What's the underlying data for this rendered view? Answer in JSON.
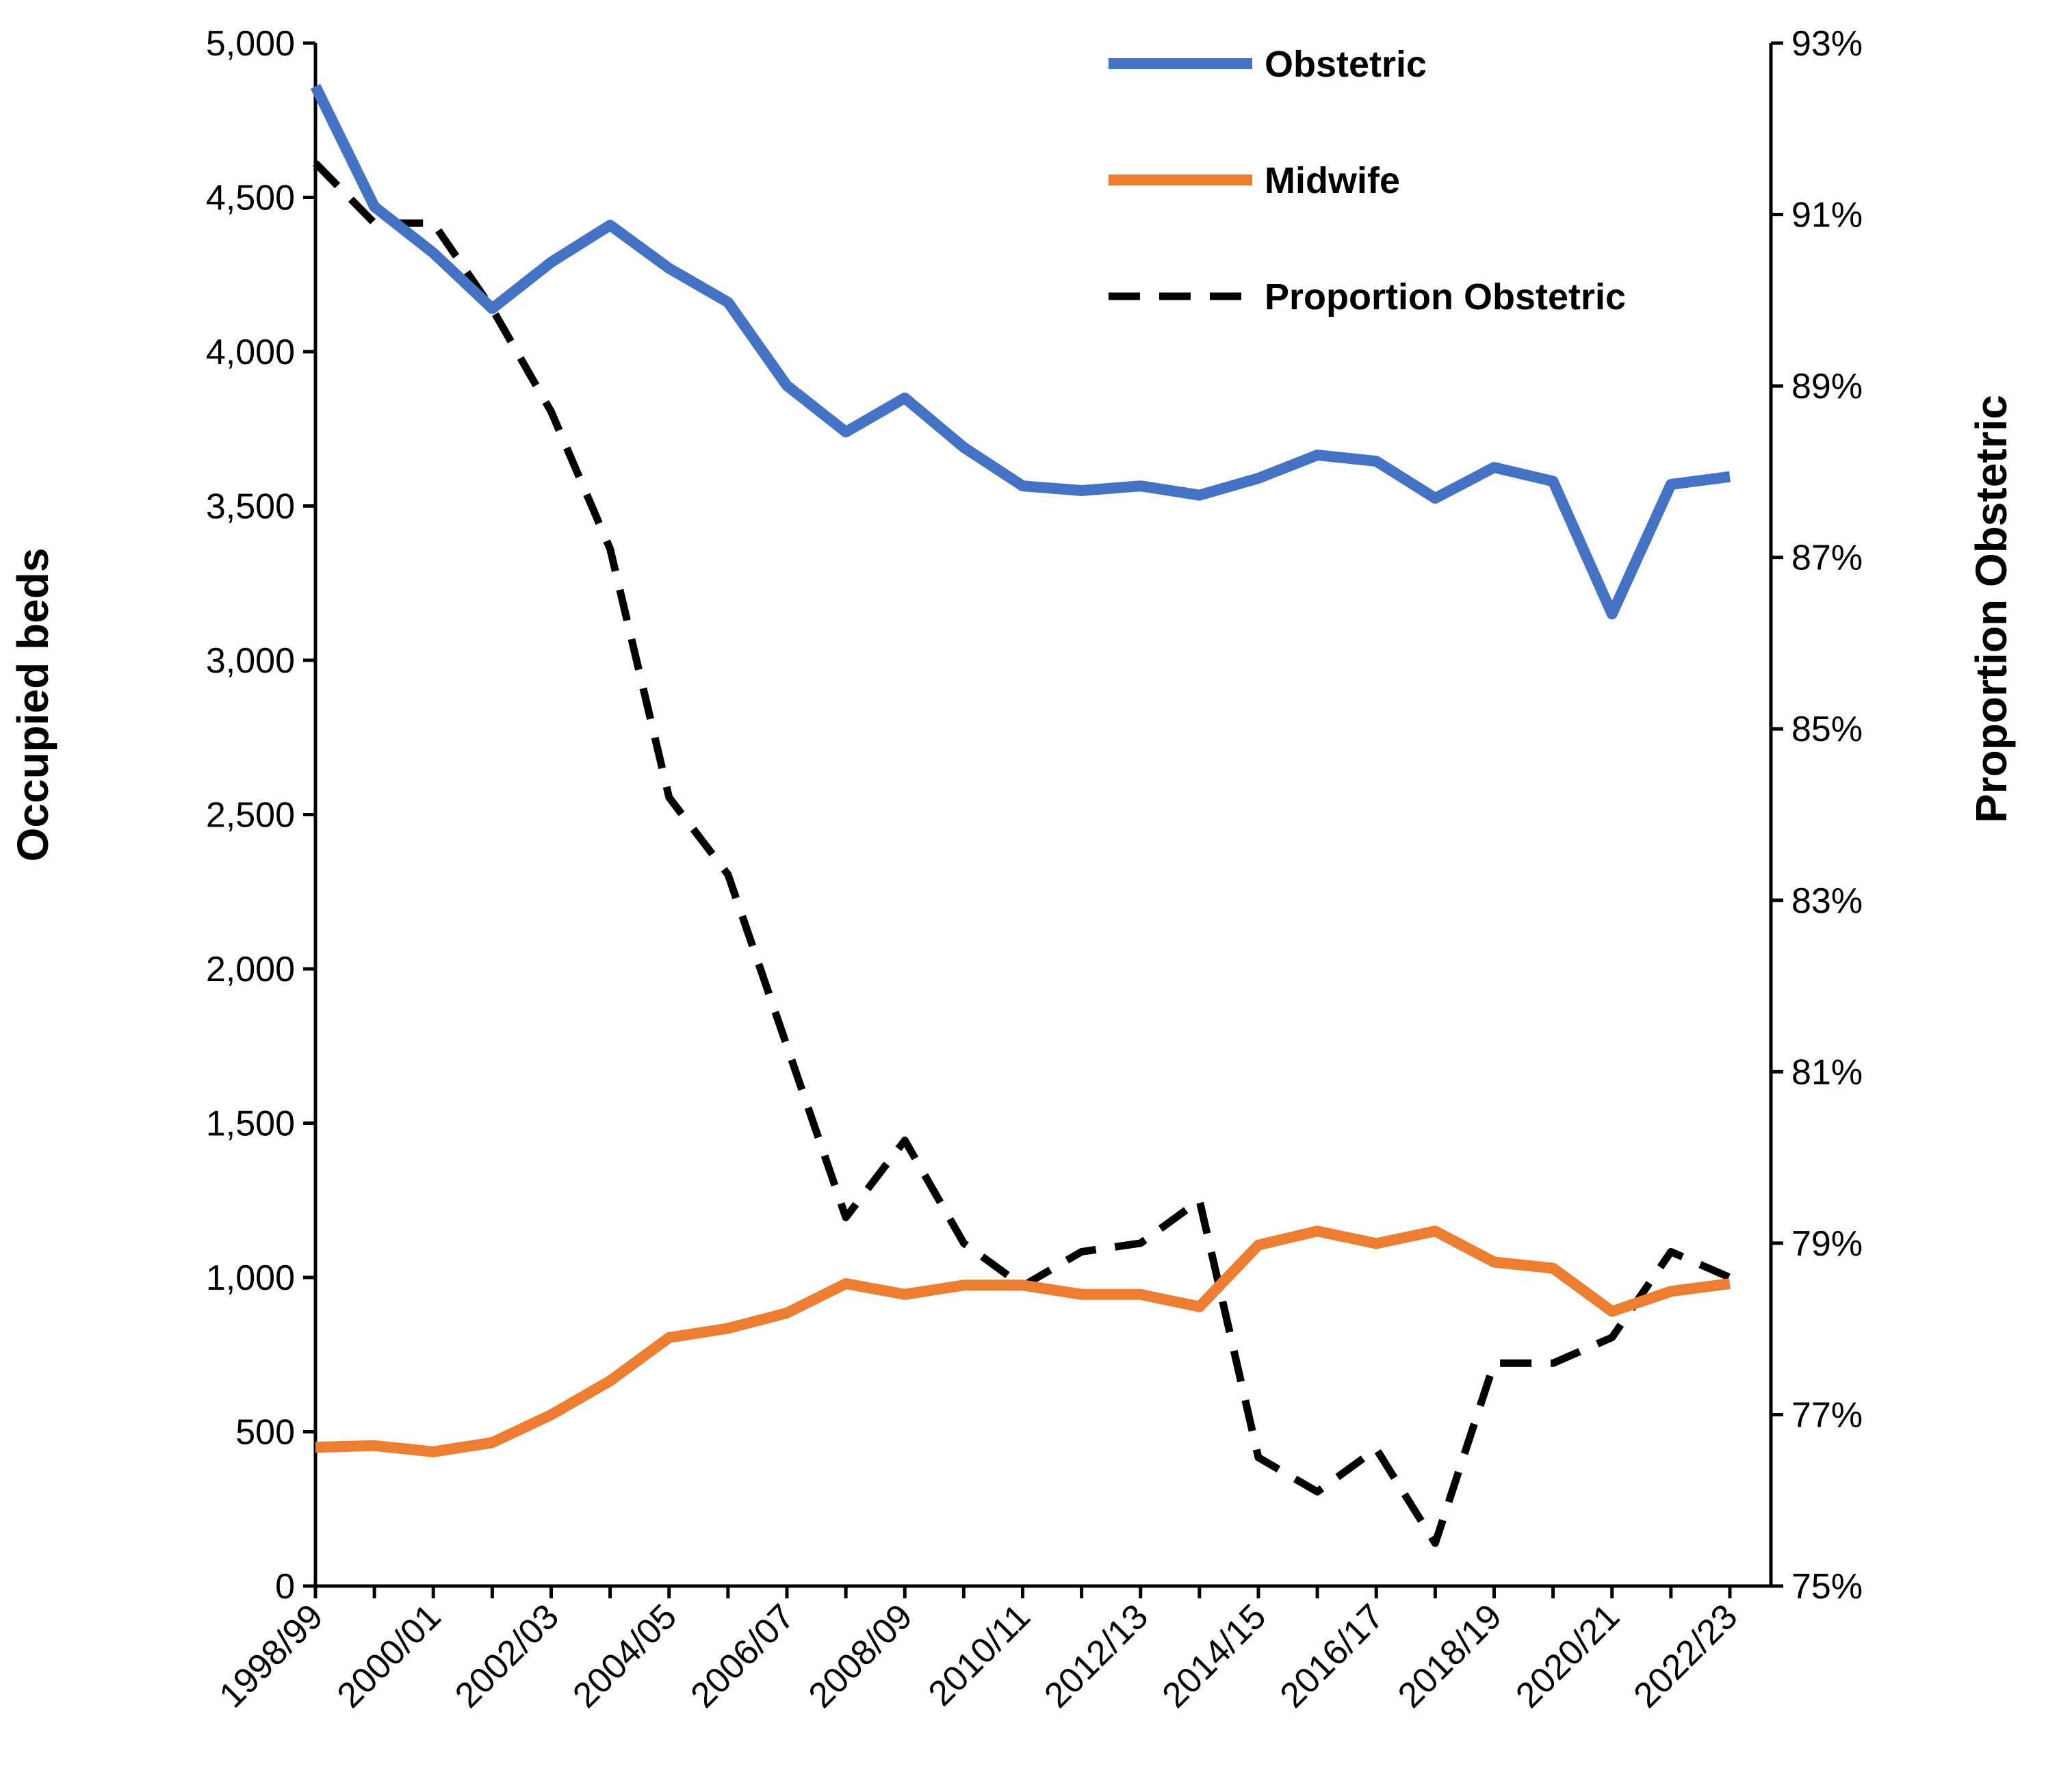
{
  "chart_data": {
    "type": "line",
    "categories": [
      "1998/99",
      "1999/00",
      "2000/01",
      "2001/02",
      "2002/03",
      "2003/04",
      "2004/05",
      "2005/06",
      "2006/07",
      "2007/08",
      "2008/09",
      "2009/10",
      "2010/11",
      "2011/12",
      "2012/13",
      "2013/14",
      "2014/15",
      "2015/16",
      "2016/17",
      "2017/18",
      "2018/19",
      "2019/20",
      "2020/21",
      "2021/22",
      "2022/23"
    ],
    "tick_labels": [
      "1998/99",
      "2000/01",
      "2002/03",
      "2004/05",
      "2006/07",
      "2008/09",
      "2010/11",
      "2012/13",
      "2014/15",
      "2016/17",
      "2018/19",
      "2020/21",
      "2022/23"
    ],
    "series": [
      {
        "name": "Obstetric",
        "axis": "left",
        "color": "#4472C4",
        "style": "solid",
        "values": [
          4860,
          4470,
          4320,
          4140,
          4290,
          4410,
          4270,
          4160,
          3890,
          3740,
          3850,
          3690,
          3565,
          3550,
          3565,
          3535,
          3590,
          3665,
          3645,
          3525,
          3625,
          3580,
          3150,
          3570,
          3595
        ]
      },
      {
        "name": "Midwife",
        "axis": "left",
        "color": "#ED7D31",
        "style": "solid",
        "values": [
          450,
          455,
          435,
          465,
          555,
          665,
          805,
          835,
          885,
          980,
          945,
          975,
          975,
          945,
          945,
          905,
          1105,
          1150,
          1110,
          1150,
          1050,
          1030,
          890,
          955,
          980
        ]
      },
      {
        "name": "Proportion Obstetric",
        "axis": "right",
        "color": "#000000",
        "style": "dashed",
        "values": [
          91.6,
          90.9,
          90.9,
          89.9,
          88.7,
          87.1,
          84.2,
          83.3,
          81.3,
          79.3,
          80.2,
          79.0,
          78.5,
          78.9,
          79.0,
          79.5,
          76.5,
          76.1,
          76.6,
          75.5,
          77.6,
          77.6,
          77.9,
          78.9,
          78.6
        ]
      }
    ],
    "left_axis": {
      "label": "Occupied beds",
      "min": 0,
      "max": 5000,
      "step": 500,
      "tick_labels": [
        "0",
        "500",
        "1,000",
        "1,500",
        "2,000",
        "2,500",
        "3,000",
        "3,500",
        "4,000",
        "4,500",
        "5,000"
      ]
    },
    "right_axis": {
      "label": "Proportion Obstetric",
      "min": 75,
      "max": 93,
      "step": 2,
      "tick_labels": [
        "75%",
        "77%",
        "79%",
        "81%",
        "83%",
        "85%",
        "87%",
        "89%",
        "91%",
        "93%"
      ]
    },
    "legend": {
      "position": "top-center",
      "entries": [
        "Obstetric",
        "Midwife",
        "Proportion Obstetric"
      ]
    },
    "grid": false
  }
}
